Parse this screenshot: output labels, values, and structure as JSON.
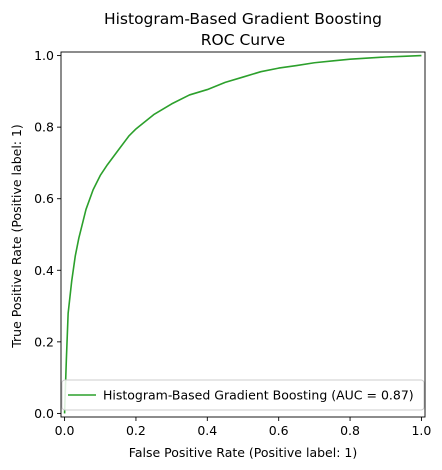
{
  "chart_data": {
    "type": "line",
    "title": "Histogram-Based Gradient Boosting",
    "subtitle": "ROC Curve",
    "xlabel": "False Positive Rate (Positive label: 1)",
    "ylabel": "True Positive Rate (Positive label: 1)",
    "xlim": [
      -0.01,
      1.01
    ],
    "ylim": [
      -0.01,
      1.01
    ],
    "xticks": [
      "0.0",
      "0.2",
      "0.4",
      "0.6",
      "0.8",
      "1.0"
    ],
    "yticks": [
      "0.0",
      "0.2",
      "0.4",
      "0.6",
      "0.8",
      "1.0"
    ],
    "grid": false,
    "legend_position": "lower-right",
    "series": [
      {
        "name": "Histogram-Based Gradient Boosting (AUC = 0.87)",
        "color": "#2ca02c",
        "x": [
          0.0,
          0.005,
          0.01,
          0.02,
          0.03,
          0.04,
          0.05,
          0.06,
          0.08,
          0.1,
          0.12,
          0.15,
          0.18,
          0.2,
          0.25,
          0.3,
          0.35,
          0.4,
          0.45,
          0.5,
          0.55,
          0.6,
          0.65,
          0.7,
          0.75,
          0.8,
          0.85,
          0.9,
          0.95,
          1.0
        ],
        "y": [
          0.0,
          0.15,
          0.28,
          0.37,
          0.44,
          0.49,
          0.53,
          0.57,
          0.625,
          0.665,
          0.695,
          0.735,
          0.775,
          0.795,
          0.835,
          0.865,
          0.89,
          0.905,
          0.925,
          0.94,
          0.955,
          0.965,
          0.972,
          0.98,
          0.985,
          0.99,
          0.993,
          0.996,
          0.998,
          1.0
        ]
      }
    ]
  }
}
